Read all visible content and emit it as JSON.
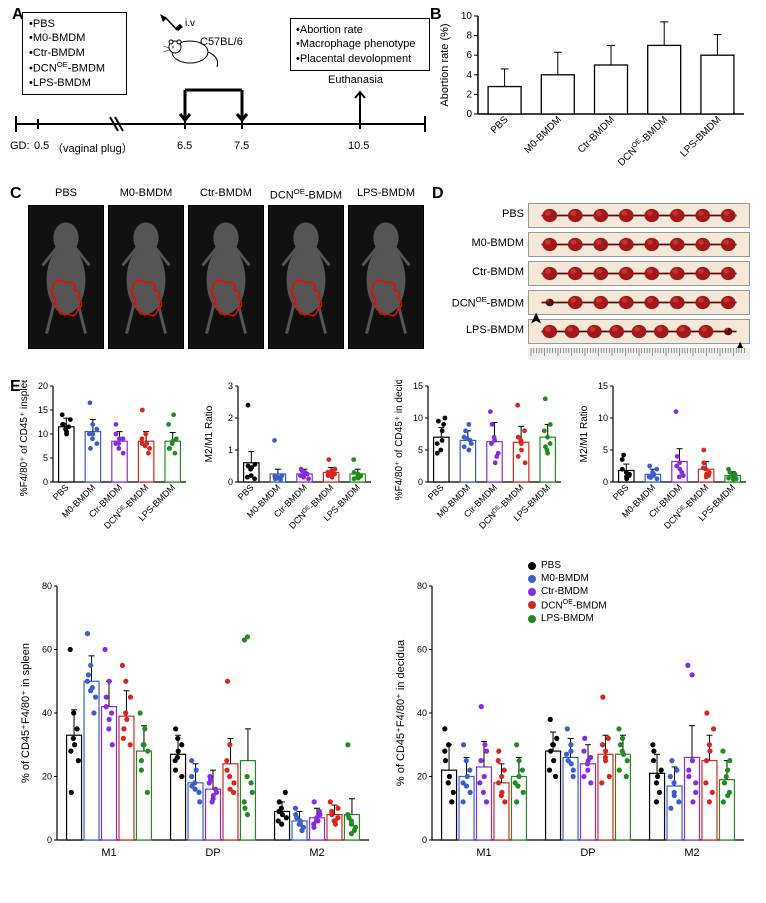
{
  "groups": [
    "PBS",
    "M0-BMDM",
    "Ctr-BMDM",
    "DCN^OE-BMDM",
    "LPS-BMDM"
  ],
  "groups_plain": [
    "PBS",
    "M0-BMDM",
    "Ctr-BMDM",
    "DCNOE-BMDM",
    "LPS-BMDM"
  ],
  "colors": {
    "PBS": "#000000",
    "M0-BMDM": "#3a5fcd",
    "Ctr-BMDM": "#8a2be2",
    "DCNOE-BMDM": "#d6281f",
    "LPS-BMDM": "#228b22",
    "bar_fill": "#ffffff",
    "bar_stroke": "#000000",
    "axis": "#000000",
    "background": "#ffffff",
    "scan_bg": "#111111",
    "scan_outline": "#ff0000",
    "scan_body": "#666666",
    "tissue_bg": "#f5e8d8",
    "tissue_embryo": "#a31818",
    "tissue_dark": "#5c0a0a"
  },
  "panelA": {
    "label": "A",
    "treatments": [
      "•PBS",
      "•M0-BMDM",
      "•Ctr-BMDM",
      "•DCN^OE-BMDM",
      "•LPS-BMDM"
    ],
    "outcomes": [
      "•Abortion rate",
      "•Macrophage phenotype",
      "•Placental devolopment"
    ],
    "iv_label": "i.v",
    "strain_label": "C57BL/6",
    "euthanasia_label": "Euthanasia",
    "gd_label": "GD:",
    "gd_marks": [
      "0.5",
      "（vaginal plug）",
      "6.5",
      "7.5",
      "10.5"
    ]
  },
  "panelB": {
    "label": "B",
    "ylabel": "Abortion rate (%)",
    "ylim": [
      0,
      10
    ],
    "yticks": [
      0,
      2,
      4,
      6,
      8,
      10
    ],
    "categories": [
      "PBS",
      "M0-BMDM",
      "Ctr-BMDM",
      "DCN^OE-BMDM",
      "LPS-BMDM"
    ],
    "values": [
      2.8,
      4.0,
      5.0,
      7.0,
      6.0
    ],
    "errors": [
      1.8,
      2.3,
      2.0,
      2.4,
      2.1
    ],
    "bar_width": 0.65,
    "label_fontsize": 10
  },
  "panelC": {
    "label": "C",
    "scan_labels": [
      "PBS",
      "M0-BMDM",
      "Ctr-BMDM",
      "DCN^OE-BMDM",
      "LPS-BMDM"
    ]
  },
  "panelD": {
    "label": "D",
    "row_labels": [
      "PBS",
      "M0-BMDM",
      "Ctr-BMDM",
      "DCN^OE-BMDM",
      "LPS-BMDM"
    ],
    "embryo_counts": [
      8,
      8,
      8,
      8,
      9
    ],
    "arrow_rows": [
      3,
      4
    ]
  },
  "panelE": {
    "label": "E",
    "subgroups": [
      "M1",
      "DP",
      "M2"
    ],
    "charts": {
      "spleen_f480": {
        "ylabel": "%F4/80⁺ of CD45⁺ inspleen",
        "ylim": [
          0,
          20
        ],
        "yticks": [
          0,
          5,
          10,
          15,
          20
        ],
        "categories": [
          "PBS",
          "M0-BMDM",
          "Ctr-BMDM",
          "DCNOE-BMDM",
          "LPS-BMDM"
        ],
        "means": [
          11.5,
          10.5,
          8.5,
          8.5,
          8.5
        ],
        "errors": [
          1.8,
          2.5,
          2.0,
          2.0,
          1.8
        ],
        "points": {
          "PBS": [
            12,
            11,
            13,
            14,
            10,
            11.5,
            12,
            10.5
          ],
          "M0-BMDM": [
            16.5,
            10,
            8,
            7,
            12,
            11,
            10,
            9
          ],
          "Ctr-BMDM": [
            12,
            9,
            6,
            8,
            7,
            9,
            10,
            8
          ],
          "DCNOE-BMDM": [
            15,
            8,
            6,
            9,
            10,
            7,
            8,
            7.5
          ],
          "LPS-BMDM": [
            12,
            14,
            6,
            7,
            8,
            9,
            7,
            8.5
          ]
        }
      },
      "spleen_ratio": {
        "ylabel": "M2/M1 Ratio",
        "ylim": [
          0,
          3
        ],
        "yticks": [
          0,
          1,
          2,
          3
        ],
        "categories": [
          "PBS",
          "M0-BMDM",
          "Ctr-BMDM",
          "DCNOE-BMDM",
          "LPS-BMDM"
        ],
        "means": [
          0.6,
          0.25,
          0.25,
          0.3,
          0.25
        ],
        "errors": [
          0.35,
          0.15,
          0.15,
          0.15,
          0.15
        ],
        "points": {
          "PBS": [
            2.4,
            0.4,
            0.55,
            0.15,
            0.2,
            0.1,
            0.5,
            0.45
          ],
          "M0-BMDM": [
            1.3,
            0.15,
            0.2,
            0.1,
            0.12,
            0.08,
            0.18,
            0.14
          ],
          "Ctr-BMDM": [
            0.4,
            0.3,
            0.1,
            0.2,
            0.15,
            0.25,
            0.35,
            0.22
          ],
          "DCNOE-BMDM": [
            0.7,
            0.35,
            0.4,
            0.2,
            0.15,
            0.25,
            0.3,
            0.28
          ],
          "LPS-BMDM": [
            0.7,
            0.15,
            0.2,
            0.1,
            0.12,
            0.18,
            0.3,
            0.25
          ]
        }
      },
      "decidua_f480": {
        "ylabel": "%F4/80⁺ of CD45⁺ in decidua",
        "ylim": [
          0,
          15
        ],
        "yticks": [
          0,
          5,
          10,
          15
        ],
        "categories": [
          "PBS",
          "M0-BMDM",
          "Ctr-BMDM",
          "DCNOE-BMDM",
          "LPS-BMDM"
        ],
        "means": [
          7,
          6.5,
          6.3,
          6.2,
          7.0
        ],
        "errors": [
          1.5,
          1.5,
          3.0,
          2.5,
          2.0
        ],
        "points": {
          "PBS": [
            9.5,
            8,
            9,
            4.5,
            5,
            10,
            6,
            6.5
          ],
          "M0-BMDM": [
            8,
            5,
            6,
            7,
            9,
            6.5,
            5.5,
            6.8
          ],
          "Ctr-BMDM": [
            11,
            3,
            4,
            9,
            7,
            4.5,
            6,
            6.5
          ],
          "DCNOE-BMDM": [
            12,
            5,
            3,
            7,
            6,
            8,
            4,
            6.5
          ],
          "LPS-BMDM": [
            13,
            5,
            6,
            8,
            7,
            9,
            5.5,
            4.5
          ]
        }
      },
      "decidua_ratio": {
        "ylabel": "M2/M1 Ratio",
        "ylim": [
          0,
          15
        ],
        "yticks": [
          0,
          5,
          10,
          15
        ],
        "categories": [
          "PBS",
          "M0-BMDM",
          "Ctr-BMDM",
          "DCNOE-BMDM",
          "LPS-BMDM"
        ],
        "means": [
          1.8,
          1.2,
          3.2,
          2.0,
          1.0
        ],
        "errors": [
          1.0,
          0.8,
          2.0,
          1.2,
          0.6
        ],
        "points": {
          "PBS": [
            4.2,
            1.5,
            1.0,
            3.5,
            0.8,
            1.2,
            2.0,
            0.5
          ],
          "M0-BMDM": [
            2.5,
            1.0,
            0.5,
            0.8,
            1.5,
            2.0,
            0.7,
            1.2
          ],
          "Ctr-BMDM": [
            11,
            2,
            1,
            4,
            3,
            1.5,
            2.5,
            0.8
          ],
          "DCNOE-BMDM": [
            5,
            2,
            1,
            3,
            0.8,
            1.5,
            2.2,
            1.2
          ],
          "LPS-BMDM": [
            2,
            1,
            0.5,
            1.5,
            0.8,
            1.2,
            0.6,
            0.4
          ]
        }
      },
      "spleen_pheno": {
        "ylabel": "% of CD45⁺F4/80⁺ in spleen",
        "ylim": [
          0,
          80
        ],
        "yticks": [
          0,
          20,
          40,
          60,
          80
        ],
        "subgroups": [
          "M1",
          "DP",
          "M2"
        ],
        "categories": [
          "PBS",
          "M0-BMDM",
          "Ctr-BMDM",
          "DCNOE-BMDM",
          "LPS-BMDM"
        ],
        "means": {
          "M1": [
            33,
            50,
            42,
            39,
            28
          ],
          "DP": [
            27,
            18,
            16,
            24,
            25
          ],
          "M2": [
            9,
            6,
            7,
            8,
            8
          ]
        },
        "errors": {
          "M1": [
            8,
            8,
            8,
            8,
            8
          ],
          "DP": [
            6,
            6,
            6,
            8,
            10
          ],
          "M2": [
            3,
            3,
            3,
            3,
            5
          ]
        },
        "points": {
          "M1": {
            "PBS": [
              60,
              40,
              25,
              15,
              30,
              35,
              28,
              32
            ],
            "M0-BMDM": [
              65,
              55,
              40,
              50,
              48,
              45,
              52,
              47
            ],
            "Ctr-BMDM": [
              60,
              35,
              30,
              45,
              50,
              40,
              42,
              38
            ],
            "DCNOE-BMDM": [
              55,
              40,
              30,
              35,
              50,
              45,
              32,
              38
            ],
            "LPS-BMDM": [
              40,
              30,
              15,
              25,
              35,
              28,
              22,
              30
            ]
          },
          "DP": {
            "PBS": [
              35,
              32,
              20,
              25,
              28,
              30,
              22,
              26
            ],
            "M0-BMDM": [
              25,
              18,
              12,
              20,
              22,
              15,
              17,
              16
            ],
            "Ctr-BMDM": [
              20,
              12,
              15,
              18,
              14,
              16,
              19,
              13
            ],
            "DCNOE-BMDM": [
              50,
              20,
              15,
              25,
              30,
              18,
              22,
              16
            ],
            "LPS-BMDM": [
              63,
              64,
              15,
              10,
              20,
              18,
              12,
              8
            ]
          },
          "M2": {
            "PBS": [
              12,
              8,
              15,
              6,
              10,
              7,
              9,
              5
            ],
            "M0-BMDM": [
              10,
              5,
              3,
              8,
              6,
              4,
              7,
              5
            ],
            "Ctr-BMDM": [
              12,
              6,
              8,
              5,
              7,
              9,
              4,
              6
            ],
            "DCNOE-BMDM": [
              12,
              6,
              10,
              8,
              5,
              7,
              9,
              6
            ],
            "LPS-BMDM": [
              30,
              5,
              3,
              8,
              6,
              4,
              7,
              2
            ]
          }
        }
      },
      "decidua_pheno": {
        "ylabel": "% of CD45⁺F4/80⁺ in decidua",
        "ylim": [
          0,
          80
        ],
        "yticks": [
          0,
          20,
          40,
          60,
          80
        ],
        "subgroups": [
          "M1",
          "DP",
          "M2"
        ],
        "categories": [
          "PBS",
          "M0-BMDM",
          "Ctr-BMDM",
          "DCNOE-BMDM",
          "LPS-BMDM"
        ],
        "means": {
          "M1": [
            22,
            20,
            23,
            18,
            20
          ],
          "DP": [
            28,
            26,
            24,
            27,
            27
          ],
          "M2": [
            21,
            17,
            26,
            25,
            19
          ]
        },
        "errors": {
          "M1": [
            8,
            6,
            8,
            6,
            6
          ],
          "DP": [
            6,
            6,
            6,
            6,
            6
          ],
          "M2": [
            6,
            6,
            10,
            8,
            6
          ]
        },
        "points": {
          "M1": {
            "PBS": [
              35,
              30,
              12,
              25,
              20,
              15,
              28,
              18
            ],
            "M0-BMDM": [
              30,
              25,
              15,
              18,
              20,
              22,
              12,
              17
            ],
            "Ctr-BMDM": [
              42,
              30,
              12,
              25,
              20,
              28,
              18,
              15
            ],
            "DCNOE-BMDM": [
              28,
              20,
              12,
              18,
              15,
              22,
              25,
              14
            ],
            "LPS-BMDM": [
              30,
              25,
              15,
              18,
              20,
              22,
              12,
              17
            ]
          },
          "DP": {
            "PBS": [
              38,
              30,
              20,
              28,
              25,
              32,
              22,
              30
            ],
            "M0-BMDM": [
              35,
              28,
              20,
              25,
              30,
              22,
              27,
              24
            ],
            "Ctr-BMDM": [
              32,
              25,
              18,
              28,
              22,
              26,
              20,
              24
            ],
            "DCNOE-BMDM": [
              45,
              28,
              20,
              30,
              25,
              32,
              18,
              26
            ],
            "LPS-BMDM": [
              35,
              28,
              20,
              30,
              32,
              25,
              22,
              27
            ]
          },
          "M2": {
            "PBS": [
              30,
              20,
              15,
              25,
              18,
              22,
              28,
              12
            ],
            "M0-BMDM": [
              25,
              15,
              12,
              20,
              18,
              22,
              10,
              14
            ],
            "Ctr-BMDM": [
              55,
              52,
              15,
              20,
              25,
              18,
              22,
              12
            ],
            "DCNOE-BMDM": [
              40,
              28,
              15,
              25,
              30,
              35,
              18,
              12
            ],
            "LPS-BMDM": [
              28,
              22,
              15,
              18,
              20,
              25,
              12,
              14
            ]
          }
        },
        "legend": {
          "items": [
            "PBS",
            "M0-BMDM",
            "Ctr-BMDM",
            "DCN^OE-BMDM",
            "LPS-BMDM"
          ]
        }
      }
    }
  }
}
